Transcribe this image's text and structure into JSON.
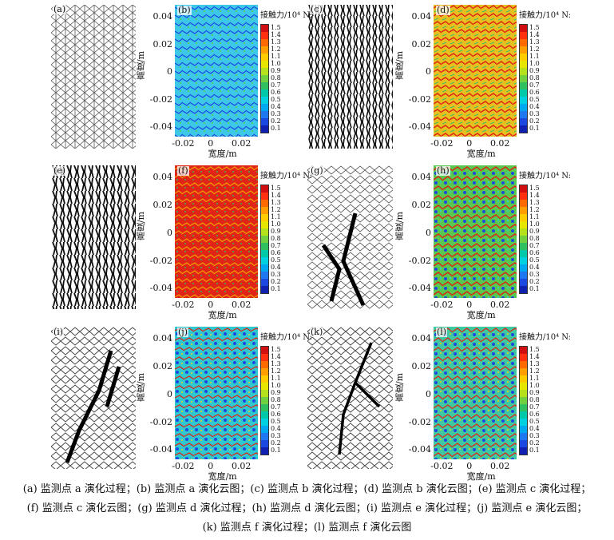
{
  "panels": {
    "a": "(a)",
    "b": "(b)",
    "c": "(c)",
    "d": "(d)",
    "e": "(e)",
    "f": "(f)",
    "g": "(g)",
    "h": "(h)",
    "i": "(i)",
    "j": "(j)",
    "k": "(k)",
    "l": "(l)"
  },
  "axes": {
    "ylabel": "高度/m",
    "xlabel": "宽度/m",
    "yticks": [
      "0.04",
      "0.02",
      "0",
      "-0.02",
      "-0.04"
    ],
    "xticks": [
      "-0.02",
      "0",
      "0.02"
    ]
  },
  "colorbar": {
    "title": "接触力/10⁴ N:",
    "ticks": [
      "1.5",
      "1.4",
      "1.3",
      "1.2",
      "1.1",
      "1.0",
      "0.9",
      "0.8",
      "0.7",
      "0.6",
      "0.5",
      "0.4",
      "0.3",
      "0.2",
      "0.1"
    ],
    "colors": [
      "#d01010",
      "#ff3010",
      "#ff6a00",
      "#ff9e00",
      "#ffcc00",
      "#e6e600",
      "#b4e01c",
      "#70d040",
      "#30c060",
      "#00c8a8",
      "#00d0e0",
      "#00a8f0",
      "#2078f0",
      "#1a48e0",
      "#1020b0"
    ]
  },
  "caption": {
    "line1": "(a) 监测点 a 演化过程；(b) 监测点 a 演化云图；(c) 监测点 b 演化过程；(d) 监测点 b 演化云图；(e) 监测点 c 演化过程；",
    "line2": "(f) 监测点 c 演化云图；(g) 监测点 d 演化过程；(h) 监测点 d 演化云图；(i) 监测点 e 演化过程；(j) 监测点 e 演化云图；",
    "line3": "(k) 监测点 f 演化过程；(l) 监测点 f 演化云图"
  }
}
